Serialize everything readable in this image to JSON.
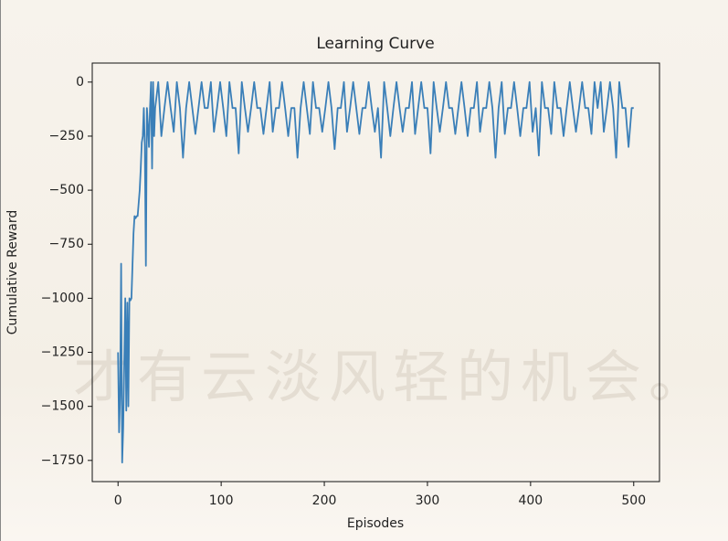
{
  "chart_data": {
    "type": "line",
    "title": "Learning Curve",
    "xlabel": "Episodes",
    "ylabel": "Cumulative Reward",
    "watermark": "才有云淡风轻的机会。",
    "color": "#3a7fb8",
    "xlim": [
      -25,
      525
    ],
    "ylim": [
      -1848,
      88
    ],
    "xticks": [
      0,
      100,
      200,
      300,
      400,
      500
    ],
    "yticks": [
      0,
      {
        "value": -250,
        "label": "−250"
      },
      {
        "value": -500,
        "label": "−500"
      },
      {
        "value": -750,
        "label": "−750"
      },
      {
        "value": -1000,
        "label": "−1000"
      },
      {
        "value": -1250,
        "label": "−1250"
      },
      {
        "value": -1500,
        "label": "−1500"
      },
      {
        "value": -1750,
        "label": "−1750"
      }
    ],
    "x": [
      0,
      1,
      2,
      3,
      4,
      5,
      6,
      7,
      8,
      9,
      10,
      11,
      12,
      13,
      14,
      15,
      16,
      17,
      18,
      19,
      20,
      21,
      22,
      23,
      24,
      25,
      26,
      27,
      28,
      29,
      30,
      31,
      32,
      33,
      34,
      35,
      36,
      39,
      42,
      45,
      48,
      51,
      54,
      57,
      60,
      63,
      66,
      69,
      72,
      75,
      78,
      81,
      84,
      87,
      90,
      93,
      96,
      99,
      102,
      105,
      108,
      111,
      114,
      117,
      120,
      123,
      126,
      129,
      132,
      135,
      138,
      141,
      144,
      147,
      150,
      153,
      156,
      159,
      162,
      165,
      168,
      171,
      174,
      177,
      180,
      183,
      186,
      189,
      192,
      195,
      198,
      201,
      204,
      207,
      210,
      213,
      216,
      219,
      222,
      225,
      228,
      231,
      234,
      237,
      240,
      243,
      246,
      249,
      252,
      255,
      258,
      261,
      264,
      267,
      270,
      273,
      276,
      279,
      282,
      285,
      288,
      291,
      294,
      297,
      300,
      303,
      306,
      309,
      312,
      315,
      318,
      321,
      324,
      327,
      330,
      333,
      336,
      339,
      342,
      345,
      348,
      351,
      354,
      357,
      360,
      363,
      366,
      369,
      372,
      375,
      378,
      381,
      384,
      387,
      390,
      393,
      396,
      399,
      402,
      405,
      408,
      411,
      414,
      417,
      420,
      423,
      426,
      429,
      432,
      435,
      438,
      441,
      444,
      447,
      450,
      453,
      456,
      459,
      462,
      465,
      468,
      471,
      474,
      477,
      480,
      483,
      486,
      489,
      492,
      495,
      498,
      500
    ],
    "values": [
      -1250,
      -1620,
      -1450,
      -840,
      -1760,
      -1600,
      -1300,
      -1000,
      -1520,
      -1020,
      -1500,
      -1000,
      -1010,
      -1000,
      -850,
      -700,
      -620,
      -630,
      -620,
      -620,
      -560,
      -500,
      -400,
      -280,
      -250,
      -120,
      -300,
      -850,
      -120,
      -200,
      -300,
      -120,
      0,
      -400,
      0,
      -250,
      -120,
      0,
      -250,
      -120,
      0,
      -120,
      -230,
      0,
      -120,
      -350,
      -120,
      0,
      -120,
      -240,
      -120,
      0,
      -120,
      -120,
      0,
      -230,
      -120,
      0,
      -120,
      -250,
      0,
      -120,
      -120,
      -330,
      0,
      -120,
      -230,
      -120,
      0,
      -120,
      -120,
      -240,
      -120,
      0,
      -230,
      -120,
      -120,
      0,
      -120,
      -250,
      -120,
      -120,
      -350,
      -120,
      0,
      -120,
      -240,
      0,
      -120,
      -120,
      -230,
      -120,
      0,
      -120,
      -310,
      -120,
      -120,
      0,
      -230,
      -120,
      0,
      -120,
      -240,
      -120,
      -120,
      0,
      -120,
      -230,
      -120,
      -350,
      0,
      -120,
      -250,
      -120,
      0,
      -120,
      -230,
      -120,
      -120,
      0,
      -240,
      -120,
      0,
      -120,
      -120,
      -330,
      0,
      -120,
      -230,
      -120,
      0,
      -120,
      -120,
      -240,
      -120,
      0,
      -120,
      -250,
      -120,
      -120,
      0,
      -230,
      -120,
      -120,
      0,
      -120,
      -350,
      -120,
      0,
      -240,
      -120,
      -120,
      0,
      -120,
      -250,
      -120,
      -120,
      0,
      -230,
      -120,
      -340,
      0,
      -120,
      -120,
      -240,
      0,
      -120,
      -120,
      -250,
      -120,
      0,
      -120,
      -230,
      -120,
      0,
      -120,
      -120,
      -240,
      0,
      -120,
      0,
      -230,
      -120,
      0,
      -120,
      -350,
      0,
      -120,
      -120,
      -300,
      -120,
      -120
    ]
  }
}
